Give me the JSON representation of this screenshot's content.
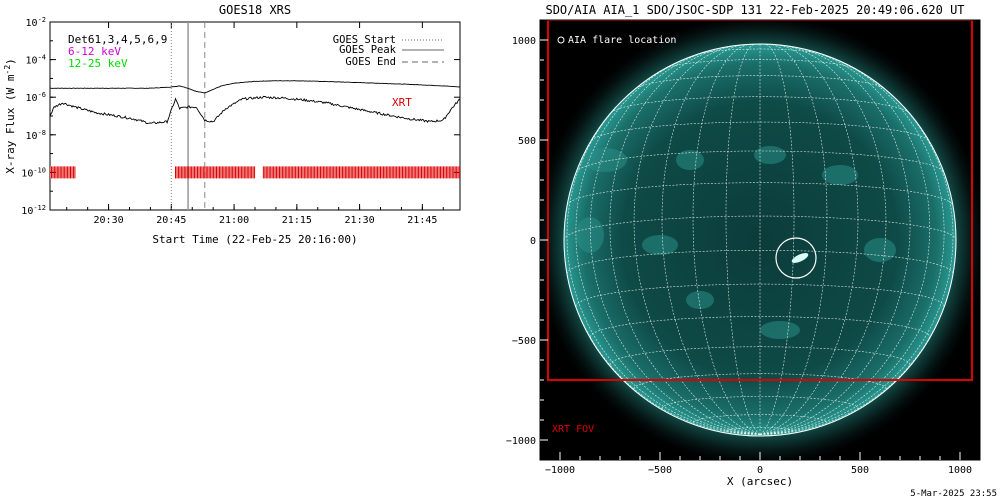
{
  "goes": {
    "title": "GOES18 XRS",
    "ylabel": "X-ray Flux (W m",
    "ylabel_sup": "-2",
    "ylabel_close": ")",
    "xlabel": "Start Time (22-Feb-25 20:16:00)",
    "detector_label": "Det61,3,4,5,6,9",
    "band_lo_label": "6-12 keV",
    "band_hi_label": "12-25 keV",
    "band_lo_color": "#d000d0",
    "band_hi_color": "#00dd00",
    "xrt_label": "XRT",
    "xrt_color": "#dd0000",
    "legend": [
      {
        "label": "GOES Start",
        "style": "dotted"
      },
      {
        "label": "GOES Peak",
        "style": "solid"
      },
      {
        "label": "GOES End",
        "style": "dashed"
      }
    ]
  },
  "aia": {
    "title": "SDO/AIA AIA_1 SDO/JSOC-SDP 131 22-Feb-2025 20:49:06.620 UT",
    "xlabel": "X (arcsec)",
    "flare_location_label": "AIA flare location",
    "fov_label": "XRT FOV",
    "fov_color": "#dd0000",
    "disk_color": "#1a7f7a"
  },
  "timestamp": "5-Mar-2025 23:55",
  "chart_data": [
    {
      "type": "line",
      "title": "GOES18 XRS",
      "xlabel": "Start Time (22-Feb-25 20:16:00)",
      "ylabel": "X-ray Flux (W m^-2)",
      "yscale": "log",
      "ylim": [
        1e-12,
        0.01
      ],
      "xlim": [
        "20:16",
        "21:54"
      ],
      "x_ticks": [
        "20:30",
        "20:45",
        "21:00",
        "21:15",
        "21:30",
        "21:45"
      ],
      "y_ticks": [
        {
          "value": 1e-12,
          "label": "10-12"
        },
        {
          "value": 1e-10,
          "label": "10-10"
        },
        {
          "value": 1e-08,
          "label": "10-8"
        },
        {
          "value": 1e-06,
          "label": "10-6"
        },
        {
          "value": 0.0001,
          "label": "10-4"
        },
        {
          "value": 0.01,
          "label": "10-2"
        }
      ],
      "events": {
        "goes_start": "20:45",
        "goes_peak": "20:49",
        "goes_end": "20:53"
      },
      "series": [
        {
          "name": "upper",
          "x": [
            "20:16",
            "20:25",
            "20:35",
            "20:40",
            "20:45",
            "20:47",
            "20:49",
            "20:51",
            "20:53",
            "20:57",
            "21:00",
            "21:05",
            "21:10",
            "21:15",
            "21:20",
            "21:25",
            "21:30",
            "21:35",
            "21:40",
            "21:45",
            "21:50",
            "21:54"
          ],
          "y": [
            3e-06,
            3e-06,
            3e-06,
            3e-06,
            3.5e-06,
            4e-06,
            3e-06,
            2e-06,
            1.7e-06,
            4e-06,
            5.5e-06,
            7e-06,
            7.5e-06,
            7.5e-06,
            7e-06,
            6.5e-06,
            6e-06,
            5.5e-06,
            5e-06,
            4.5e-06,
            4e-06,
            3.5e-06
          ]
        },
        {
          "name": "lower",
          "x": [
            "20:16",
            "20:17",
            "20:19",
            "20:22",
            "20:27",
            "20:32",
            "20:36",
            "20:40",
            "20:44",
            "20:46",
            "20:47",
            "20:49",
            "20:51",
            "20:53",
            "20:55",
            "20:58",
            "21:02",
            "21:07",
            "21:12",
            "21:17",
            "21:22",
            "21:27",
            "21:32",
            "21:37",
            "21:42",
            "21:47",
            "21:50",
            "21:52",
            "21:54"
          ],
          "y": [
            1e-07,
            3e-07,
            5e-07,
            3e-07,
            1.5e-07,
            1e-07,
            7e-08,
            4e-08,
            5e-08,
            8e-07,
            2.5e-07,
            3e-07,
            3e-07,
            6e-08,
            5e-08,
            2.5e-07,
            8e-07,
            1e-06,
            9e-07,
            7e-07,
            5e-07,
            3e-07,
            1.8e-07,
            1.1e-07,
            7e-08,
            5e-08,
            6e-08,
            2.5e-07,
            8e-07
          ]
        }
      ],
      "xrt_exposures": [
        {
          "start": "20:16",
          "end": "20:22"
        },
        {
          "start": "20:46",
          "end": "21:05"
        },
        {
          "start": "21:07",
          "end": "21:54"
        }
      ]
    },
    {
      "type": "heatmap",
      "title": "SDO/AIA AIA_1 SDO/JSOC-SDP 131 22-Feb-2025 20:49:06.620 UT",
      "xlabel": "X (arcsec)",
      "xlim": [
        -1100,
        1100
      ],
      "ylim": [
        -1100,
        1100
      ],
      "x_ticks": [
        -1000,
        -500,
        0,
        500,
        1000
      ],
      "y_ticks": [
        -1000,
        -500,
        0,
        500,
        1000
      ],
      "solar_radius_arcsec": 980,
      "flare_location": {
        "x": 180,
        "y": -90,
        "radius": 100
      },
      "xrt_fov": {
        "x0": -1060,
        "x1": 1060,
        "y0": -700,
        "y1": 1100
      }
    }
  ]
}
